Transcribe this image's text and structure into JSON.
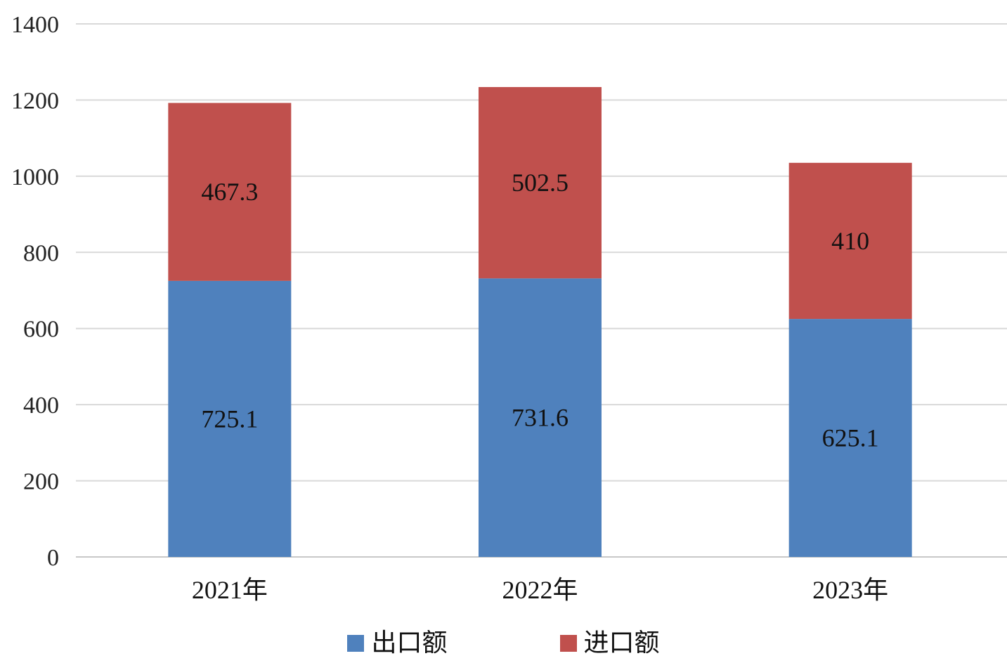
{
  "chart_data": {
    "type": "bar",
    "stacked": true,
    "categories": [
      "2021年",
      "2022年",
      "2023年"
    ],
    "series": [
      {
        "name": "出口额",
        "values": [
          725.1,
          731.6,
          625.1
        ],
        "color": "#4f81bd",
        "labels": [
          "725.1",
          "731.6",
          "625.1"
        ]
      },
      {
        "name": "进口额",
        "values": [
          467.3,
          502.5,
          410
        ],
        "color": "#c0504d",
        "labels": [
          "467.3",
          "502.5",
          "410"
        ]
      }
    ],
    "ylim": [
      0,
      1400
    ],
    "yticks": [
      "0",
      "200",
      "400",
      "600",
      "800",
      "1000",
      "1200",
      "1400"
    ],
    "grid": true,
    "legend_position": "bottom",
    "title": "",
    "xlabel": "",
    "ylabel": ""
  },
  "legend": {
    "items": [
      {
        "label": "出口额",
        "color": "#4f81bd"
      },
      {
        "label": "进口额",
        "color": "#c0504d"
      }
    ]
  }
}
